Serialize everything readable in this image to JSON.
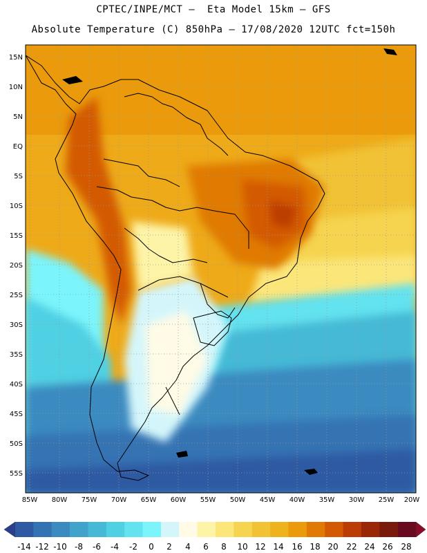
{
  "header": {
    "line1": "CPTEC/INPE/MCT –  Eta Model 15km – GFS",
    "line2": "Absolute Temperature (C) 850hPa – 17/08/2020 12UTC fct=150h"
  },
  "axes": {
    "lat_labels": [
      "15N",
      "10N",
      "5N",
      "EQ",
      "5S",
      "10S",
      "15S",
      "20S",
      "25S",
      "30S",
      "35S",
      "40S",
      "45S",
      "50S",
      "55S"
    ],
    "lon_labels": [
      "85W",
      "80W",
      "75W",
      "70W",
      "65W",
      "60W",
      "55W",
      "50W",
      "45W",
      "40W",
      "35W",
      "30W",
      "25W",
      "20W"
    ]
  },
  "colorbar": {
    "labels": [
      "-14",
      "-12",
      "-10",
      "-8",
      "-6",
      "-4",
      "-2",
      "0",
      "2",
      "4",
      "6",
      "8",
      "10",
      "12",
      "14",
      "16",
      "18",
      "20",
      "22",
      "24",
      "26",
      "28"
    ],
    "colors": [
      "#2b3f8f",
      "#2f5aa3",
      "#3473b3",
      "#3b8ac0",
      "#41a3cb",
      "#45b9d6",
      "#4fd0e3",
      "#63e2ef",
      "#7cf4fb",
      "#d4f6fb",
      "#fffbe6",
      "#fdf4a8",
      "#fbe67a",
      "#f6d450",
      "#f1c234",
      "#eeb21c",
      "#ea9a0a",
      "#e07a04",
      "#d35a02",
      "#bb3c04",
      "#9a2808",
      "#7a1a0c",
      "#6a0a1e",
      "#8a0a2a"
    ]
  },
  "map": {
    "land_color": "#000000"
  }
}
